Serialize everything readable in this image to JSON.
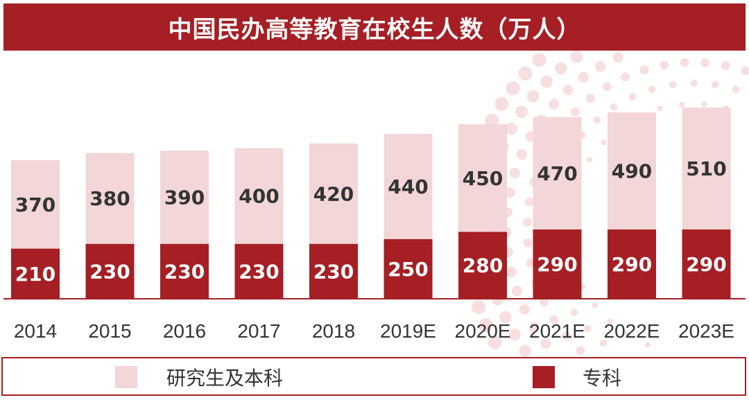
{
  "colors": {
    "primary": "#a51f24",
    "light": "#f3d6d7",
    "dot": "#f7dedf",
    "text_dark": "#333333",
    "text_light": "#ffffff"
  },
  "chart_data": {
    "type": "bar",
    "stacked": true,
    "title": "中国民办高等教育在校生人数（万人）",
    "categories": [
      "2014",
      "2015",
      "2016",
      "2017",
      "2018",
      "2019E",
      "2020E",
      "2021E",
      "2022E",
      "2023E"
    ],
    "series": [
      {
        "name": "专科",
        "values": [
          210,
          230,
          230,
          230,
          230,
          250,
          280,
          290,
          290,
          290
        ]
      },
      {
        "name": "研究生及本科",
        "values": [
          370,
          380,
          390,
          400,
          420,
          440,
          450,
          470,
          490,
          510
        ]
      }
    ],
    "legend": {
      "position": "bottom"
    },
    "grid": false
  }
}
